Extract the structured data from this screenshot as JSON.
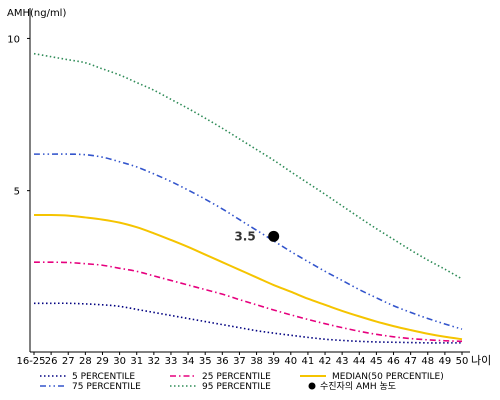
{
  "chart_data": {
    "type": "line",
    "ylabel": "AMH(ng/ml)",
    "xlabel": "나이",
    "x": [
      "16-25",
      "26",
      "27",
      "28",
      "29",
      "30",
      "31",
      "32",
      "33",
      "34",
      "35",
      "36",
      "37",
      "38",
      "39",
      "40",
      "41",
      "42",
      "43",
      "44",
      "45",
      "46",
      "47",
      "48",
      "49",
      "50"
    ],
    "y_ticks": [
      5,
      10
    ],
    "ylim": [
      -0.3,
      11
    ],
    "grid": false,
    "legend_position": "bottom",
    "series": [
      {
        "name": "5 PERCENTILE",
        "color": "#000080",
        "dash": "dotted",
        "values": [
          1.3,
          1.3,
          1.3,
          1.28,
          1.25,
          1.2,
          1.1,
          1.0,
          0.9,
          0.8,
          0.7,
          0.6,
          0.5,
          0.4,
          0.32,
          0.25,
          0.18,
          0.12,
          0.08,
          0.05,
          0.03,
          0.02,
          0.01,
          0.0,
          0.0,
          0.0
        ]
      },
      {
        "name": "25 PERCENTILE",
        "color": "#e6007e",
        "dash": "dashdot",
        "values": [
          2.65,
          2.65,
          2.64,
          2.6,
          2.55,
          2.45,
          2.35,
          2.2,
          2.05,
          1.9,
          1.75,
          1.6,
          1.42,
          1.25,
          1.08,
          0.92,
          0.77,
          0.63,
          0.5,
          0.38,
          0.28,
          0.2,
          0.14,
          0.1,
          0.07,
          0.05
        ]
      },
      {
        "name": "MEDIAN(50 PERCENTILE)",
        "color": "#f5c400",
        "dash": "solid",
        "values": [
          4.2,
          4.2,
          4.18,
          4.12,
          4.05,
          3.95,
          3.8,
          3.6,
          3.38,
          3.15,
          2.9,
          2.65,
          2.4,
          2.15,
          1.9,
          1.68,
          1.45,
          1.25,
          1.05,
          0.87,
          0.7,
          0.55,
          0.42,
          0.3,
          0.2,
          0.12
        ]
      },
      {
        "name": "75 PERCENTILE",
        "color": "#3355cc",
        "dash": "dashdotdot",
        "values": [
          6.2,
          6.2,
          6.2,
          6.18,
          6.1,
          5.95,
          5.78,
          5.55,
          5.3,
          5.02,
          4.72,
          4.4,
          4.05,
          3.7,
          3.35,
          3.0,
          2.67,
          2.35,
          2.05,
          1.75,
          1.48,
          1.22,
          1.0,
          0.8,
          0.62,
          0.45
        ]
      },
      {
        "name": "95 PERCENTILE",
        "color": "#2e8b57",
        "dash": "dotted",
        "values": [
          9.5,
          9.4,
          9.3,
          9.2,
          9.0,
          8.8,
          8.55,
          8.3,
          8.0,
          7.7,
          7.38,
          7.05,
          6.7,
          6.35,
          6.0,
          5.62,
          5.25,
          4.88,
          4.5,
          4.12,
          3.75,
          3.4,
          3.05,
          2.72,
          2.42,
          2.1
        ]
      }
    ],
    "marker": {
      "name": "수진자의 AMH 농도",
      "x": "39",
      "y": 3.5,
      "label": "3.5",
      "color": "#000000"
    }
  }
}
